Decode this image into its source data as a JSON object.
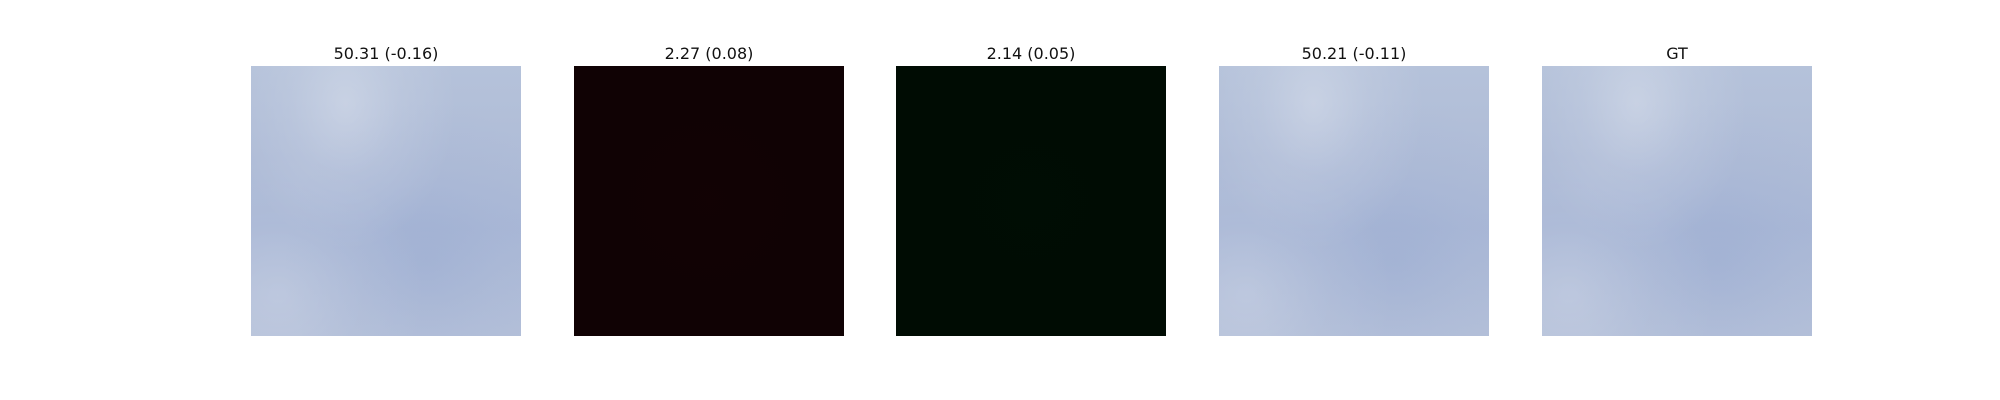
{
  "panels": [
    {
      "title": "50.31 (-0.16)"
    },
    {
      "title": "2.27 (0.08)"
    },
    {
      "title": "2.14 (0.05)"
    },
    {
      "title": "50.21 (-0.11)"
    },
    {
      "title": "GT"
    }
  ]
}
